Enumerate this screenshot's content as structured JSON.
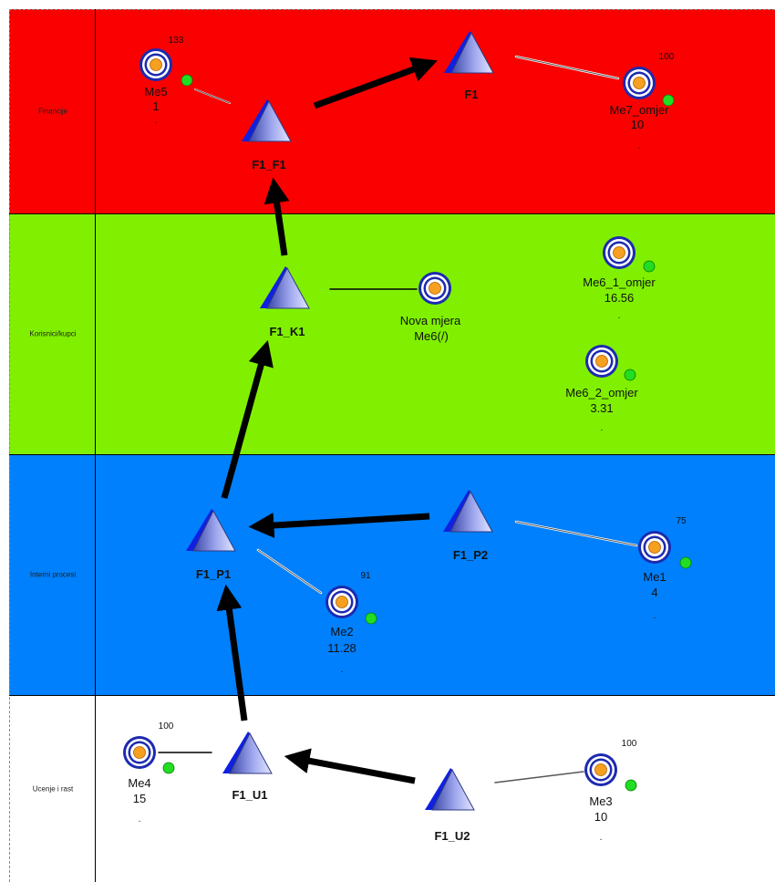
{
  "bands": [
    {
      "id": "fin",
      "label": "Financije"
    },
    {
      "id": "kor",
      "label": "Korisnici/kupci"
    },
    {
      "id": "int",
      "label": "Interni procesi"
    },
    {
      "id": "uce",
      "label": "Ucenje i rast"
    }
  ],
  "goals": {
    "F1": "F1",
    "F1_F1": "F1_F1",
    "F1_K1": "F1_K1",
    "F1_P1": "F1_P1",
    "F1_P2": "F1_P2",
    "F1_U1": "F1_U1",
    "F1_U2": "F1_U2"
  },
  "measures": {
    "Me5": {
      "name": "Me5",
      "value": "1",
      "target": "133",
      "dot": "."
    },
    "Me7": {
      "name": "Me7_omjer",
      "value": "10",
      "target": "100",
      "dot": "."
    },
    "Nova": {
      "name": "Nova mjera",
      "value": "Me6(/)"
    },
    "Me6_1": {
      "name": "Me6_1_omjer",
      "value": "16.56",
      "dot": "."
    },
    "Me6_2": {
      "name": "Me6_2_omjer",
      "value": "3.31",
      "dot": "."
    },
    "Me1": {
      "name": "Me1",
      "value": "4",
      "target": "75",
      "dot": "."
    },
    "Me2": {
      "name": "Me2",
      "value": "11.28",
      "target": "91",
      "dot": "."
    },
    "Me4": {
      "name": "Me4",
      "value": "15",
      "target": "100",
      "dot": "."
    },
    "Me3": {
      "name": "Me3",
      "value": "10",
      "target": "100",
      "dot": "."
    }
  },
  "colors": {
    "financije": "#fb0000",
    "korisnici": "#80f000",
    "interni": "#0080fc",
    "ucenje": "#ffffff",
    "status_ok": "#22dd22"
  }
}
